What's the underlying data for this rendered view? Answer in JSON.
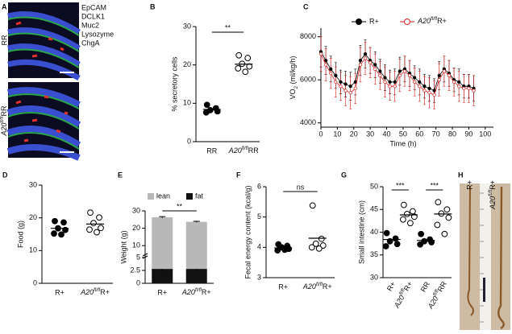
{
  "panel_A": {
    "label": "A",
    "stains": [
      {
        "text": "EpCAM",
        "color": "#1f9a3f"
      },
      {
        "text": "DCLK1",
        "color": "#d42a2a"
      },
      {
        "text": "Muc2",
        "color": "#d42a2a"
      },
      {
        "text": "Lysozyme",
        "color": "#d42a2a"
      },
      {
        "text": "ChgA",
        "color": "#d42a2a"
      }
    ],
    "rows": [
      "RR",
      [
        "A20",
        "fl/fl",
        "RR"
      ]
    ]
  },
  "panel_H": {
    "label": "H",
    "columns": [
      "R+",
      [
        "A20",
        "fl/fl",
        "R+"
      ]
    ]
  },
  "chart_data": [
    {
      "type": "dot",
      "label": "B",
      "ylabel": "% secretory cells",
      "categories": [
        "RR",
        [
          "A20",
          "fl/fl",
          "RR"
        ]
      ],
      "markers": [
        "filled",
        "open"
      ],
      "values": [
        [
          9.6,
          8.7,
          8.2,
          7.9,
          7.6
        ],
        [
          22.5,
          21.8,
          20.3,
          19.6,
          19.1,
          18.2
        ]
      ],
      "means": [
        8.4,
        20.2
      ],
      "ylim": [
        0,
        30
      ],
      "yticks": [
        0,
        10,
        20,
        30
      ],
      "comparisons": [
        {
          "pair": [
            0,
            1
          ],
          "label": "**"
        }
      ]
    },
    {
      "type": "line",
      "label": "C",
      "xlabel": "Time (h)",
      "ylabel": [
        "VO",
        "2",
        " (ml/kg/h)"
      ],
      "x": [
        0,
        3,
        6,
        9,
        12,
        15,
        18,
        21,
        24,
        27,
        30,
        33,
        36,
        39,
        42,
        45,
        48,
        51,
        54,
        57,
        60,
        63,
        66,
        69,
        72,
        75,
        78,
        81,
        84,
        87,
        90,
        93
      ],
      "series": [
        {
          "name": "R+",
          "color": "#000000",
          "marker": "filled",
          "values": [
            7300,
            6900,
            6500,
            6200,
            5900,
            5800,
            5700,
            5900,
            6900,
            7200,
            6900,
            6700,
            6400,
            6100,
            5900,
            5900,
            6400,
            6500,
            6300,
            6100,
            5900,
            5700,
            5600,
            5500,
            6200,
            6500,
            6300,
            6000,
            5900,
            5700,
            5700,
            5600
          ],
          "errors": [
            700,
            650,
            600,
            600,
            550,
            600,
            650,
            600,
            700,
            650,
            600,
            600,
            550,
            600,
            550,
            600,
            650,
            600,
            600,
            550,
            600,
            550,
            600,
            550,
            650,
            600,
            600,
            550,
            600,
            550,
            550,
            600
          ]
        },
        {
          "name": [
            "A20",
            "fl/fl",
            "R+"
          ],
          "color": "#d62020",
          "marker": "open",
          "values": [
            7200,
            6700,
            6300,
            5900,
            5700,
            5500,
            5400,
            5600,
            6700,
            7000,
            6800,
            6500,
            6200,
            5900,
            5700,
            5700,
            6200,
            6400,
            6200,
            5900,
            5700,
            5500,
            5400,
            5300,
            6000,
            6400,
            6200,
            5900,
            5700,
            5600,
            5600,
            5500
          ],
          "errors": [
            800,
            750,
            700,
            700,
            650,
            700,
            750,
            700,
            800,
            750,
            700,
            700,
            650,
            700,
            650,
            700,
            750,
            700,
            700,
            650,
            700,
            650,
            700,
            650,
            750,
            700,
            700,
            650,
            700,
            650,
            650,
            700
          ]
        }
      ],
      "xlim": [
        0,
        105
      ],
      "xticks": [
        0,
        10,
        20,
        30,
        40,
        50,
        60,
        70,
        80,
        90,
        100
      ],
      "ylim": [
        3800,
        8400
      ],
      "yticks": [
        4000,
        6000,
        8000
      ]
    },
    {
      "type": "dot",
      "label": "D",
      "ylabel": "Food (g)",
      "categories": [
        "R+",
        [
          "A20",
          "fl/fl",
          "R+"
        ]
      ],
      "markers": [
        "filled",
        "open"
      ],
      "values": [
        [
          19,
          18.6,
          16.8,
          16.3,
          15.2,
          14.9
        ],
        [
          21.6,
          20.1,
          18.4,
          16.9,
          16.4,
          15.6
        ]
      ],
      "means": [
        16.8,
        18.1
      ],
      "ylim": [
        0,
        30
      ],
      "yticks": [
        0,
        10,
        20,
        30
      ]
    },
    {
      "type": "stacked_bar",
      "label": "E",
      "ylabel": "Weight (g)",
      "categories": [
        "R+",
        [
          "A20",
          "fl/fl",
          "R+"
        ]
      ],
      "series": [
        {
          "name": "fat",
          "color": "#111111",
          "values": [
            2.8,
            2.8
          ],
          "errors": [
            0.5,
            0.25
          ]
        },
        {
          "name": "lean",
          "color": "#b8b8b8",
          "values": [
            23.5,
            20.9
          ],
          "errors": [
            0.4,
            0.3
          ]
        }
      ],
      "ylim": [
        0,
        30
      ],
      "yticks": [
        0,
        2.5,
        5,
        10,
        20,
        30
      ],
      "y_break": 5,
      "comparisons": [
        {
          "pair": [
            0,
            1
          ],
          "label": "**"
        }
      ]
    },
    {
      "type": "dot",
      "label": "F",
      "ylabel": "Fecal energy content (kcal/g)",
      "categories": [
        "R+",
        [
          "A20",
          "fl/fl",
          "R+"
        ]
      ],
      "markers": [
        "filled",
        "open"
      ],
      "values": [
        [
          4.1,
          4.05,
          4.0,
          3.95,
          3.9,
          3.92
        ],
        [
          5.38,
          4.28,
          4.12,
          4.06,
          4.0,
          3.96
        ]
      ],
      "means": [
        3.98,
        4.3
      ],
      "ylim": [
        3,
        6
      ],
      "yticks": [
        3,
        4,
        5,
        6
      ],
      "comparisons": [
        {
          "pair": [
            0,
            1
          ],
          "label": "ns"
        }
      ]
    },
    {
      "type": "dot",
      "label": "G",
      "ylabel": "Small intestine (cm)",
      "categories": [
        "R+",
        [
          "A20",
          "fl/fl",
          "R+"
        ],
        "RR",
        [
          "A20",
          "fl/fl",
          "RR"
        ]
      ],
      "markers": [
        "filled",
        "open",
        "filled",
        "open"
      ],
      "values": [
        [
          39.8,
          38.6,
          38.0,
          37.4,
          36.9
        ],
        [
          46.0,
          44.6,
          44.0,
          43.4,
          42.8,
          42.0
        ],
        [
          39.6,
          38.4,
          38.0,
          37.8,
          37.3
        ],
        [
          46.6,
          45.0,
          44.1,
          43.2,
          41.6,
          39.6
        ]
      ],
      "means": [
        38.4,
        43.8,
        38.2,
        44.0
      ],
      "ylim": [
        30,
        50
      ],
      "yticks": [
        30,
        35,
        40,
        45,
        50
      ],
      "rotate_labels": true,
      "comparisons": [
        {
          "pair": [
            0,
            1
          ],
          "label": "***"
        },
        {
          "pair": [
            2,
            3
          ],
          "label": "***"
        }
      ]
    }
  ]
}
